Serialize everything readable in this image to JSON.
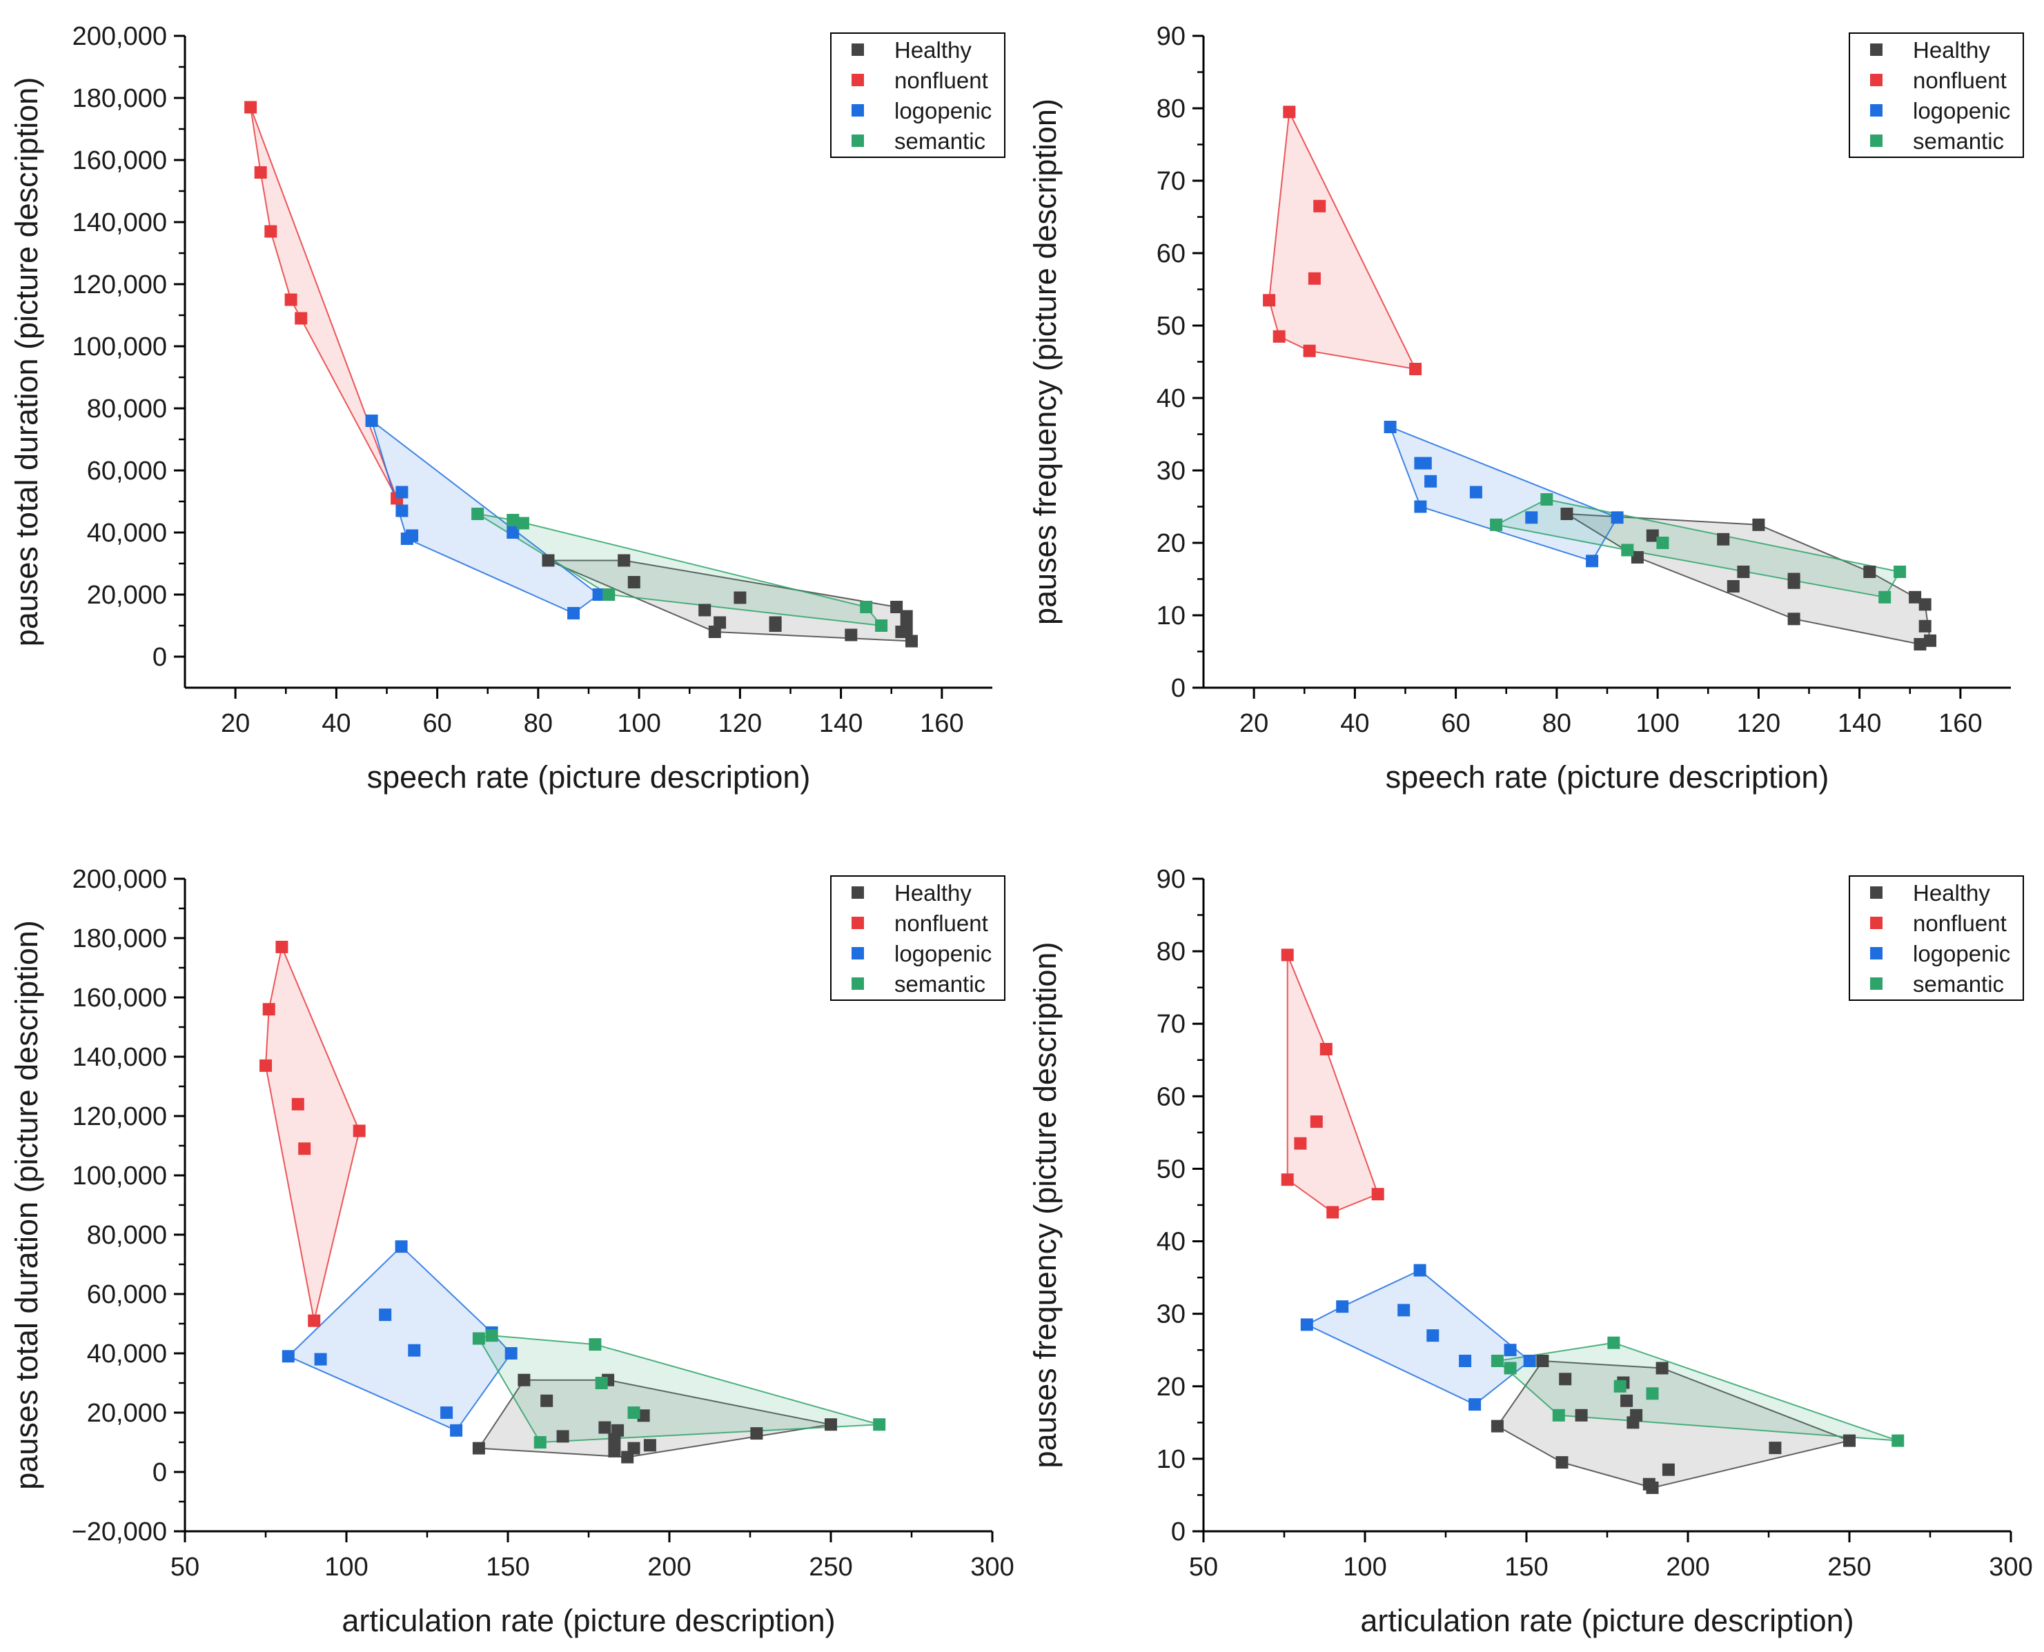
{
  "legend": {
    "items": [
      {
        "key": "Healthy",
        "label": "Healthy",
        "color": "#444444"
      },
      {
        "key": "nonfluent",
        "label": "nonfluent",
        "color": "#e8393d"
      },
      {
        "key": "logopenic",
        "label": "logopenic",
        "color": "#1f6ee0"
      },
      {
        "key": "semantic",
        "label": "semantic",
        "color": "#2ea46a"
      }
    ],
    "placement": "top-right"
  },
  "chart_data": [
    {
      "type": "scatter",
      "panel": "top-left",
      "xlabel": "speech rate (picture description)",
      "ylabel": "pauses total duration (picture description)",
      "xlim": [
        10,
        170
      ],
      "ylim": [
        -10000,
        200000
      ],
      "xticks": [
        20,
        40,
        60,
        80,
        100,
        120,
        140,
        160
      ],
      "yticks": [
        0,
        20000,
        40000,
        60000,
        80000,
        100000,
        120000,
        140000,
        160000,
        180000,
        200000
      ],
      "xtick_labels": [
        "20",
        "40",
        "60",
        "80",
        "100",
        "120",
        "140",
        "160"
      ],
      "ytick_labels": [
        "0",
        "20,000",
        "40,000",
        "60,000",
        "80,000",
        "100,000",
        "120,000",
        "140,000",
        "160,000",
        "180,000",
        "200,000"
      ],
      "series": [
        {
          "name": "Healthy",
          "hull": true,
          "points": [
            [
              82,
              31000
            ],
            [
              97,
              31000
            ],
            [
              99,
              24000
            ],
            [
              113,
              15000
            ],
            [
              116,
              11000
            ],
            [
              115,
              8000
            ],
            [
              120,
              19000
            ],
            [
              127,
              11000
            ],
            [
              127,
              10000
            ],
            [
              142,
              7000
            ],
            [
              151,
              16000
            ],
            [
              153,
              13000
            ],
            [
              153,
              9000
            ],
            [
              152,
              8000
            ],
            [
              154,
              5000
            ]
          ]
        },
        {
          "name": "nonfluent",
          "hull": true,
          "points": [
            [
              23,
              177000
            ],
            [
              25,
              156000
            ],
            [
              27,
              137000
            ],
            [
              31,
              115000
            ],
            [
              33,
              109000
            ],
            [
              52,
              51000
            ]
          ]
        },
        {
          "name": "logopenic",
          "hull": true,
          "points": [
            [
              47,
              76000
            ],
            [
              53,
              53000
            ],
            [
              53,
              47000
            ],
            [
              55,
              39000
            ],
            [
              54,
              38000
            ],
            [
              75,
              40000
            ],
            [
              92,
              20000
            ],
            [
              87,
              14000
            ]
          ]
        },
        {
          "name": "semantic",
          "hull": true,
          "points": [
            [
              68,
              46000
            ],
            [
              75,
              44000
            ],
            [
              77,
              43000
            ],
            [
              94,
              20000
            ],
            [
              145,
              16000
            ],
            [
              148,
              10000
            ]
          ]
        }
      ]
    },
    {
      "type": "scatter",
      "panel": "top-right",
      "xlabel": "speech rate (picture description)",
      "ylabel": "pauses frequency (picture description)",
      "xlim": [
        10,
        170
      ],
      "ylim": [
        0,
        90
      ],
      "xticks": [
        20,
        40,
        60,
        80,
        100,
        120,
        140,
        160
      ],
      "yticks": [
        0,
        10,
        20,
        30,
        40,
        50,
        60,
        70,
        80,
        90
      ],
      "xtick_labels": [
        "20",
        "40",
        "60",
        "80",
        "100",
        "120",
        "140",
        "160"
      ],
      "ytick_labels": [
        "0",
        "10",
        "20",
        "30",
        "40",
        "50",
        "60",
        "70",
        "80",
        "90"
      ],
      "series": [
        {
          "name": "Healthy",
          "hull": true,
          "points": [
            [
              82,
              24
            ],
            [
              99,
              21
            ],
            [
              96,
              18
            ],
            [
              113,
              20.5
            ],
            [
              117,
              16
            ],
            [
              115,
              14
            ],
            [
              120,
              22.5
            ],
            [
              127,
              15
            ],
            [
              127,
              14.5
            ],
            [
              127,
              9.5
            ],
            [
              142,
              16
            ],
            [
              151,
              12.5
            ],
            [
              153,
              11.5
            ],
            [
              153,
              8.5
            ],
            [
              152,
              6
            ],
            [
              154,
              6.5
            ]
          ]
        },
        {
          "name": "nonfluent",
          "hull": true,
          "points": [
            [
              27,
              79.5
            ],
            [
              33,
              66.5
            ],
            [
              32,
              56.5
            ],
            [
              23,
              53.5
            ],
            [
              25,
              48.5
            ],
            [
              31,
              46.5
            ],
            [
              52,
              44
            ]
          ]
        },
        {
          "name": "logopenic",
          "hull": true,
          "points": [
            [
              47,
              36
            ],
            [
              54,
              31
            ],
            [
              53,
              31
            ],
            [
              55,
              28.5
            ],
            [
              64,
              27
            ],
            [
              53,
              25
            ],
            [
              75,
              23.5
            ],
            [
              92,
              23.5
            ],
            [
              87,
              17.5
            ]
          ]
        },
        {
          "name": "semantic",
          "hull": true,
          "points": [
            [
              78,
              26
            ],
            [
              68,
              22.5
            ],
            [
              94,
              19
            ],
            [
              101,
              20
            ],
            [
              148,
              16
            ],
            [
              145,
              12.5
            ]
          ]
        }
      ]
    },
    {
      "type": "scatter",
      "panel": "bottom-left",
      "xlabel": "articulation rate (picture description)",
      "ylabel": "pauses total duration (picture description)",
      "xlim": [
        50,
        300
      ],
      "ylim": [
        -20000,
        200000
      ],
      "xticks": [
        50,
        100,
        150,
        200,
        250,
        300
      ],
      "yticks": [
        -20000,
        0,
        20000,
        40000,
        60000,
        80000,
        100000,
        120000,
        140000,
        160000,
        180000,
        200000
      ],
      "xtick_labels": [
        "50",
        "100",
        "150",
        "200",
        "250",
        "300"
      ],
      "ytick_labels": [
        "−20,000",
        "0",
        "20,000",
        "40,000",
        "60,000",
        "80,000",
        "100,000",
        "120,000",
        "140,000",
        "160,000",
        "180,000",
        "200,000"
      ],
      "series": [
        {
          "name": "Healthy",
          "hull": true,
          "points": [
            [
              155,
              31000
            ],
            [
              181,
              31000
            ],
            [
              162,
              24000
            ],
            [
              180,
              15000
            ],
            [
              184,
              14000
            ],
            [
              183,
              11000
            ],
            [
              167,
              12000
            ],
            [
              192,
              19000
            ],
            [
              227,
              13000
            ],
            [
              250,
              16000
            ],
            [
              141,
              8000
            ],
            [
              183,
              7000
            ],
            [
              189,
              8000
            ],
            [
              194,
              9000
            ],
            [
              187,
              5000
            ]
          ]
        },
        {
          "name": "nonfluent",
          "hull": true,
          "points": [
            [
              80,
              177000
            ],
            [
              76,
              156000
            ],
            [
              75,
              137000
            ],
            [
              85,
              124000
            ],
            [
              104,
              115000
            ],
            [
              87,
              109000
            ],
            [
              90,
              51000
            ]
          ]
        },
        {
          "name": "logopenic",
          "hull": true,
          "points": [
            [
              117,
              76000
            ],
            [
              112,
              53000
            ],
            [
              121,
              41000
            ],
            [
              145,
              47000
            ],
            [
              151,
              40000
            ],
            [
              82,
              39000
            ],
            [
              92,
              38000
            ],
            [
              131,
              20000
            ],
            [
              134,
              14000
            ]
          ]
        },
        {
          "name": "semantic",
          "hull": true,
          "points": [
            [
              141,
              45000
            ],
            [
              145,
              46000
            ],
            [
              177,
              43000
            ],
            [
              179,
              30000
            ],
            [
              189,
              20000
            ],
            [
              265,
              16000
            ],
            [
              160,
              10000
            ]
          ]
        }
      ]
    },
    {
      "type": "scatter",
      "panel": "bottom-right",
      "xlabel": "articulation rate (picture description)",
      "ylabel": "pauses frequency (picture description)",
      "xlim": [
        50,
        300
      ],
      "ylim": [
        0,
        90
      ],
      "xticks": [
        50,
        100,
        150,
        200,
        250,
        300
      ],
      "yticks": [
        0,
        10,
        20,
        30,
        40,
        50,
        60,
        70,
        80,
        90
      ],
      "xtick_labels": [
        "50",
        "100",
        "150",
        "200",
        "250",
        "300"
      ],
      "ytick_labels": [
        "0",
        "10",
        "20",
        "30",
        "40",
        "50",
        "60",
        "70",
        "80",
        "90"
      ],
      "series": [
        {
          "name": "Healthy",
          "hull": true,
          "points": [
            [
              155,
              23.5
            ],
            [
              162,
              21
            ],
            [
              180,
              20.5
            ],
            [
              192,
              22.5
            ],
            [
              181,
              18
            ],
            [
              184,
              16
            ],
            [
              183,
              15
            ],
            [
              167,
              16
            ],
            [
              141,
              14.5
            ],
            [
              161,
              9.5
            ],
            [
              194,
              8.5
            ],
            [
              188,
              6.5
            ],
            [
              189,
              6
            ],
            [
              227,
              11.5
            ],
            [
              250,
              12.5
            ]
          ]
        },
        {
          "name": "nonfluent",
          "hull": true,
          "points": [
            [
              76,
              79.5
            ],
            [
              88,
              66.5
            ],
            [
              85,
              56.5
            ],
            [
              80,
              53.5
            ],
            [
              76,
              48.5
            ],
            [
              90,
              44
            ],
            [
              104,
              46.5
            ]
          ]
        },
        {
          "name": "logopenic",
          "hull": true,
          "points": [
            [
              117,
              36
            ],
            [
              93,
              31
            ],
            [
              112,
              30.5
            ],
            [
              121,
              27
            ],
            [
              131,
              23.5
            ],
            [
              145,
              25
            ],
            [
              151,
              23.5
            ],
            [
              82,
              28.5
            ],
            [
              134,
              17.5
            ]
          ]
        },
        {
          "name": "semantic",
          "hull": true,
          "points": [
            [
              141,
              23.5
            ],
            [
              145,
              22.5
            ],
            [
              177,
              26
            ],
            [
              179,
              20
            ],
            [
              189,
              19
            ],
            [
              160,
              16
            ],
            [
              265,
              12.5
            ]
          ]
        }
      ]
    }
  ]
}
